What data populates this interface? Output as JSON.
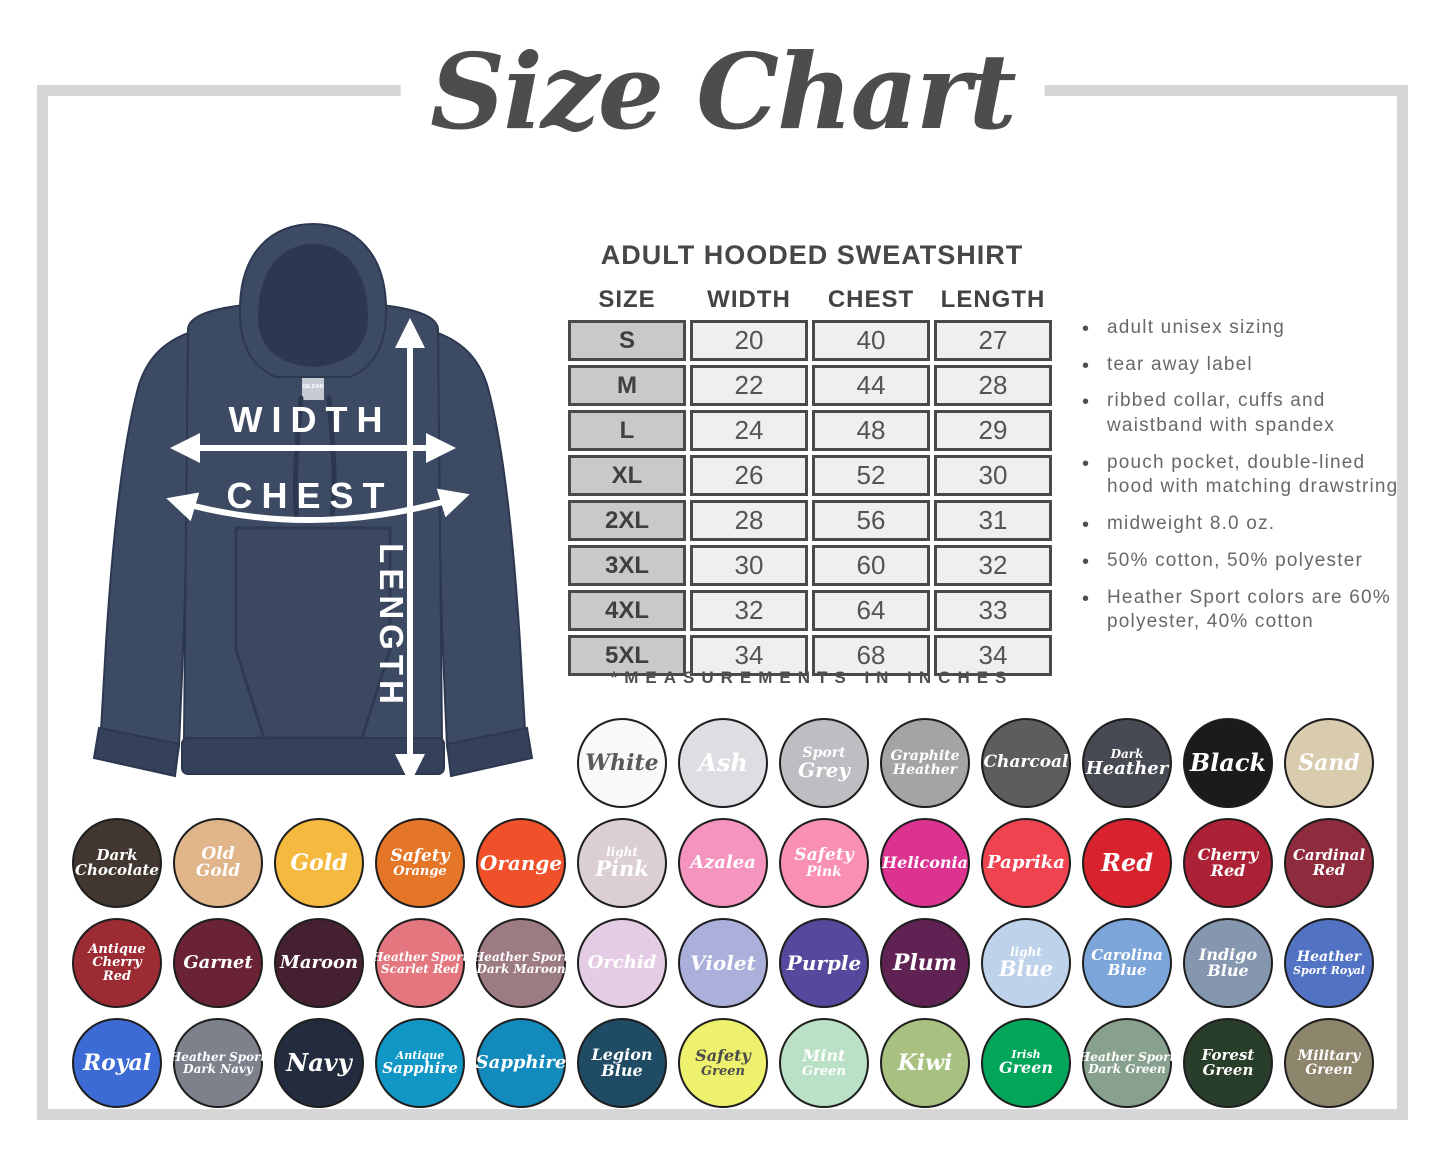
{
  "title": "Size Chart",
  "product": {
    "heading": "ADULT HOODED SWEATSHIRT",
    "footnote": "*MEASUREMENTS IN INCHES"
  },
  "diagram": {
    "width_label": "WIDTH",
    "chest_label": "CHEST",
    "length_label": "LENGTH",
    "brand": "GILDAN",
    "hoodie_color": "#3d4a63"
  },
  "size_table": {
    "headers": [
      "SIZE",
      "WIDTH",
      "CHEST",
      "LENGTH"
    ],
    "rows": [
      [
        "S",
        "20",
        "40",
        "27"
      ],
      [
        "M",
        "22",
        "44",
        "28"
      ],
      [
        "L",
        "24",
        "48",
        "29"
      ],
      [
        "XL",
        "26",
        "52",
        "30"
      ],
      [
        "2XL",
        "28",
        "56",
        "31"
      ],
      [
        "3XL",
        "30",
        "60",
        "32"
      ],
      [
        "4XL",
        "32",
        "64",
        "33"
      ],
      [
        "5XL",
        "34",
        "68",
        "34"
      ]
    ]
  },
  "features": [
    "adult unisex sizing",
    "tear away label",
    "ribbed collar, cuffs and waistband with spandex",
    "pouch pocket, double-lined hood with matching drawstring",
    "midweight 8.0 oz.",
    "50% cotton, 50% polyester",
    "Heather Sport colors are 60% polyester, 40% cotton"
  ],
  "swatch_rows": [
    [
      {
        "name": "White",
        "lines": [
          "White"
        ],
        "bg": "#f9f9f9",
        "fg": "#5a5a5a",
        "fs": 22
      },
      {
        "name": "Ash",
        "lines": [
          "Ash"
        ],
        "bg": "#dcdee2",
        "fg": "#ffffff",
        "fs": 24
      },
      {
        "name": "Sport Grey",
        "lines": [
          "Sport",
          "Grey"
        ],
        "bg": "#bcbec2",
        "fg": "#ffffff",
        "fs": 20,
        "scales": [
          0.7,
          1
        ]
      },
      {
        "name": "Graphite Heather",
        "lines": [
          "Graphite",
          "Heather"
        ],
        "bg": "#a3a5a3",
        "fg": "#ffffff",
        "fs": 14
      },
      {
        "name": "Charcoal",
        "lines": [
          "Charcoal"
        ],
        "bg": "#5c5d5f",
        "fg": "#ffffff",
        "fs": 17
      },
      {
        "name": "Dark Heather",
        "lines": [
          "Dark",
          "Heather"
        ],
        "bg": "#474a52",
        "fg": "#ffffff",
        "fs": 18,
        "scales": [
          0.65,
          1
        ]
      },
      {
        "name": "Black",
        "lines": [
          "Black"
        ],
        "bg": "#1b1b1b",
        "fg": "#ffffff",
        "fs": 24
      },
      {
        "name": "Sand",
        "lines": [
          "Sand"
        ],
        "bg": "#d8cbae",
        "fg": "#ffffff",
        "fs": 22
      }
    ],
    [
      {
        "name": "Dark Chocolate",
        "lines": [
          "Dark",
          "Chocolate"
        ],
        "bg": "#413730",
        "fg": "#ffffff",
        "fs": 15
      },
      {
        "name": "Old Gold",
        "lines": [
          "Old",
          "Gold"
        ],
        "bg": "#dfb589",
        "fg": "#ffffff",
        "fs": 17
      },
      {
        "name": "Gold",
        "lines": [
          "Gold"
        ],
        "bg": "#f6b93f",
        "fg": "#ffffff",
        "fs": 22
      },
      {
        "name": "Safety Orange",
        "lines": [
          "Safety",
          "Orange"
        ],
        "bg": "#e57527",
        "fg": "#ffffff",
        "fs": 17,
        "scales": [
          1,
          0.75
        ]
      },
      {
        "name": "Orange",
        "lines": [
          "Orange"
        ],
        "bg": "#f0512a",
        "fg": "#ffffff",
        "fs": 20
      },
      {
        "name": "Light Pink",
        "lines": [
          "light",
          "Pink"
        ],
        "bg": "#dbcfd3",
        "fg": "#ffffff",
        "fs": 21,
        "scales": [
          0.55,
          1
        ]
      },
      {
        "name": "Azalea",
        "lines": [
          "Azalea"
        ],
        "bg": "#f594bf",
        "fg": "#ffffff",
        "fs": 18
      },
      {
        "name": "Safety Pink",
        "lines": [
          "Safety",
          "Pink"
        ],
        "bg": "#f98fb1",
        "fg": "#ffffff",
        "fs": 17,
        "scales": [
          1,
          0.8
        ]
      },
      {
        "name": "Heliconia",
        "lines": [
          "Heliconia"
        ],
        "bg": "#dd3390",
        "fg": "#ffffff",
        "fs": 16
      },
      {
        "name": "Paprika",
        "lines": [
          "Paprika"
        ],
        "bg": "#ef4450",
        "fg": "#ffffff",
        "fs": 18
      },
      {
        "name": "Red",
        "lines": [
          "Red"
        ],
        "bg": "#d8232e",
        "fg": "#ffffff",
        "fs": 24
      },
      {
        "name": "Cherry Red",
        "lines": [
          "Cherry",
          "Red"
        ],
        "bg": "#ac2136",
        "fg": "#ffffff",
        "fs": 16
      },
      {
        "name": "Cardinal Red",
        "lines": [
          "Cardinal",
          "Red"
        ],
        "bg": "#8e2c3e",
        "fg": "#ffffff",
        "fs": 15
      }
    ],
    [
      {
        "name": "Antique Cherry Red",
        "lines": [
          "Antique",
          "Cherry",
          "Red"
        ],
        "bg": "#9d2b33",
        "fg": "#ffffff",
        "fs": 13
      },
      {
        "name": "Garnet",
        "lines": [
          "Garnet"
        ],
        "bg": "#6a2334",
        "fg": "#ffffff",
        "fs": 18
      },
      {
        "name": "Maroon",
        "lines": [
          "Maroon"
        ],
        "bg": "#452031",
        "fg": "#ffffff",
        "fs": 18
      },
      {
        "name": "Heather Sport Scarlet Red",
        "lines": [
          "Heather Sport",
          "Scarlet Red"
        ],
        "bg": "#e3767f",
        "fg": "#ffffff",
        "fs": 12
      },
      {
        "name": "Heather Sport Dark Maroon",
        "lines": [
          "Heather Sport",
          "Dark Maroon"
        ],
        "bg": "#9d7b83",
        "fg": "#ffffff",
        "fs": 12
      },
      {
        "name": "Orchid",
        "lines": [
          "Orchid"
        ],
        "bg": "#e4cde4",
        "fg": "#ffffff",
        "fs": 18
      },
      {
        "name": "Violet",
        "lines": [
          "Violet"
        ],
        "bg": "#abb0da",
        "fg": "#ffffff",
        "fs": 20
      },
      {
        "name": "Purple",
        "lines": [
          "Purple"
        ],
        "bg": "#56489c",
        "fg": "#ffffff",
        "fs": 20
      },
      {
        "name": "Plum",
        "lines": [
          "Plum"
        ],
        "bg": "#602252",
        "fg": "#ffffff",
        "fs": 22
      },
      {
        "name": "Light Blue",
        "lines": [
          "light",
          "Blue"
        ],
        "bg": "#bed3eb",
        "fg": "#ffffff",
        "fs": 21,
        "scales": [
          0.55,
          1
        ]
      },
      {
        "name": "Carolina Blue",
        "lines": [
          "Carolina",
          "Blue"
        ],
        "bg": "#7ca5da",
        "fg": "#ffffff",
        "fs": 15
      },
      {
        "name": "Indigo Blue",
        "lines": [
          "Indigo",
          "Blue"
        ],
        "bg": "#8596af",
        "fg": "#ffffff",
        "fs": 16
      },
      {
        "name": "Heather Sport Royal",
        "lines": [
          "Heather",
          "Sport Royal"
        ],
        "bg": "#5273c4",
        "fg": "#ffffff",
        "fs": 14,
        "scales": [
          1,
          0.8
        ]
      }
    ],
    [
      {
        "name": "Royal",
        "lines": [
          "Royal"
        ],
        "bg": "#3c6bd5",
        "fg": "#ffffff",
        "fs": 22
      },
      {
        "name": "Heather Sport Dark Navy",
        "lines": [
          "Heather Sport",
          "Dark Navy"
        ],
        "bg": "#7d818c",
        "fg": "#ffffff",
        "fs": 12
      },
      {
        "name": "Navy",
        "lines": [
          "Navy"
        ],
        "bg": "#232c3e",
        "fg": "#ffffff",
        "fs": 24
      },
      {
        "name": "Antique Sapphire",
        "lines": [
          "Antique",
          "Sapphire"
        ],
        "bg": "#1197c5",
        "fg": "#ffffff",
        "fs": 15,
        "scales": [
          0.7,
          1
        ]
      },
      {
        "name": "Sapphire",
        "lines": [
          "Sapphire"
        ],
        "bg": "#128abc",
        "fg": "#ffffff",
        "fs": 18
      },
      {
        "name": "Legion Blue",
        "lines": [
          "Legion",
          "Blue"
        ],
        "bg": "#204b64",
        "fg": "#ffffff",
        "fs": 16
      },
      {
        "name": "Safety Green",
        "lines": [
          "Safety",
          "Green"
        ],
        "bg": "#eef16d",
        "fg": "#4c4c4c",
        "fs": 16,
        "scales": [
          1,
          0.8
        ]
      },
      {
        "name": "Mint Green",
        "lines": [
          "Mint",
          "Green"
        ],
        "bg": "#bae1c5",
        "fg": "#ffffff",
        "fs": 16,
        "scales": [
          1,
          0.8
        ]
      },
      {
        "name": "Kiwi",
        "lines": [
          "Kiwi"
        ],
        "bg": "#a8c180",
        "fg": "#ffffff",
        "fs": 22
      },
      {
        "name": "Irish Green",
        "lines": [
          "Irish",
          "Green"
        ],
        "bg": "#02a65a",
        "fg": "#ffffff",
        "fs": 16,
        "scales": [
          0.7,
          1
        ]
      },
      {
        "name": "Heather Sport Dark Green",
        "lines": [
          "Heather Sport",
          "Dark Green"
        ],
        "bg": "#88a18f",
        "fg": "#ffffff",
        "fs": 12
      },
      {
        "name": "Forest Green",
        "lines": [
          "Forest",
          "Green"
        ],
        "bg": "#293d2b",
        "fg": "#ffffff",
        "fs": 15
      },
      {
        "name": "Military Green",
        "lines": [
          "Military",
          "Green"
        ],
        "bg": "#8e856d",
        "fg": "#ffffff",
        "fs": 14
      }
    ]
  ]
}
